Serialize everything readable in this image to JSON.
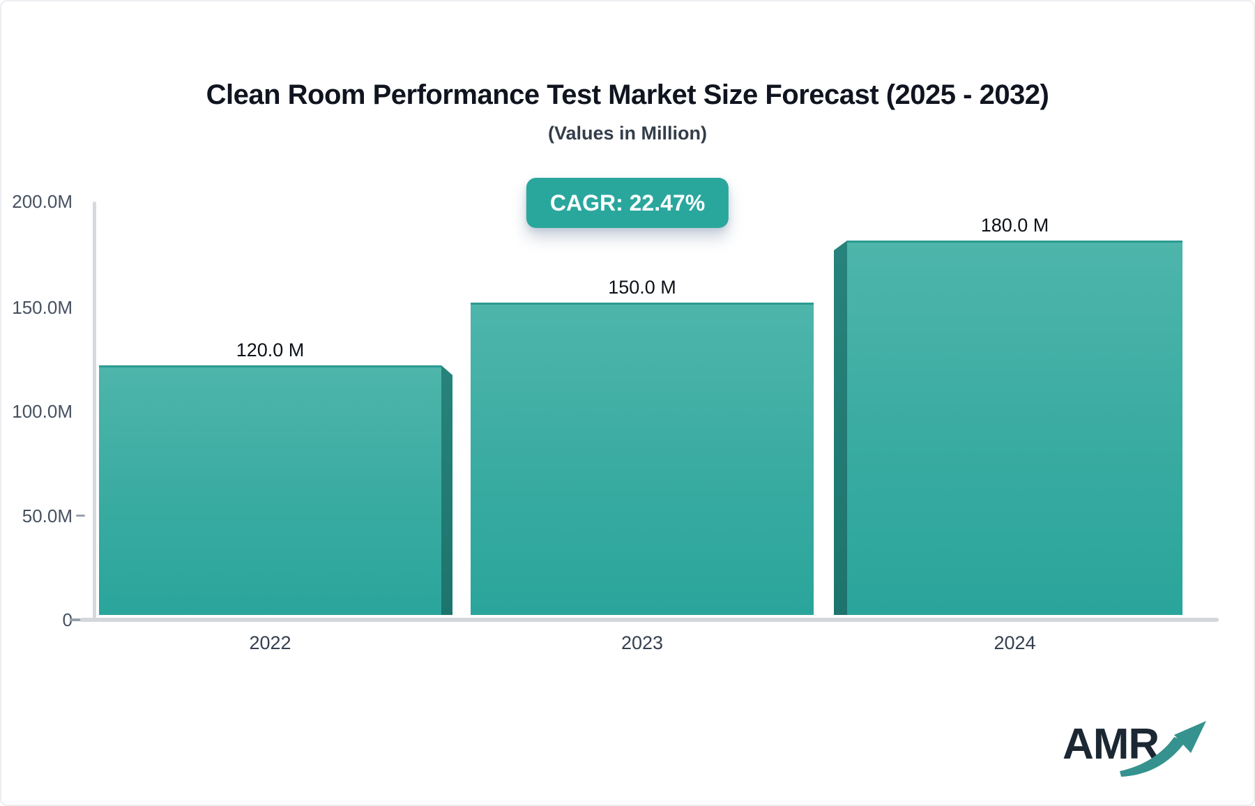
{
  "header": {
    "title": "Clean Room Performance Test Market Size Forecast (2025 - 2032)",
    "subtitle": "(Values in Million)",
    "cagr_badge": "CAGR: 22.47%"
  },
  "chart_data": {
    "type": "bar",
    "title": "Clean Room Performance Test Market Size Forecast (2025 - 2032)",
    "subtitle": "(Values in Million)",
    "unit": "Million",
    "cagr_percent": 22.47,
    "categories": [
      "2022",
      "2023",
      "2024"
    ],
    "values": [
      120,
      150,
      180
    ],
    "value_labels": [
      "120.0 M",
      "150.0 M",
      "180.0 M"
    ],
    "xlabel": "",
    "ylabel": "",
    "ylim": [
      0,
      200
    ],
    "y_ticks": [
      0,
      50,
      100,
      150,
      200
    ],
    "y_tick_labels_top_to_bottom": [
      "200.0M",
      "150.0M",
      "100.0M",
      "50.0M",
      "0"
    ],
    "grid": false,
    "legend": "none",
    "bar_style": "3d-extruded"
  },
  "logo": {
    "text": "AMR",
    "icon": "growth-arrow-icon"
  },
  "colors": {
    "bar_gradient_top": "#4eb5ab",
    "bar_gradient_bottom": "#2aa59b",
    "bar_top_edge": "#2c9a91",
    "bar_side_3d": "#1f7a72",
    "badge_background": "#2aa79d",
    "badge_text": "#ffffff",
    "axis_line": "#d6d9de",
    "tick_label": "#46505f",
    "title_text": "#10141f",
    "logo_text": "#1b2733",
    "logo_arrow": "#35928e"
  }
}
